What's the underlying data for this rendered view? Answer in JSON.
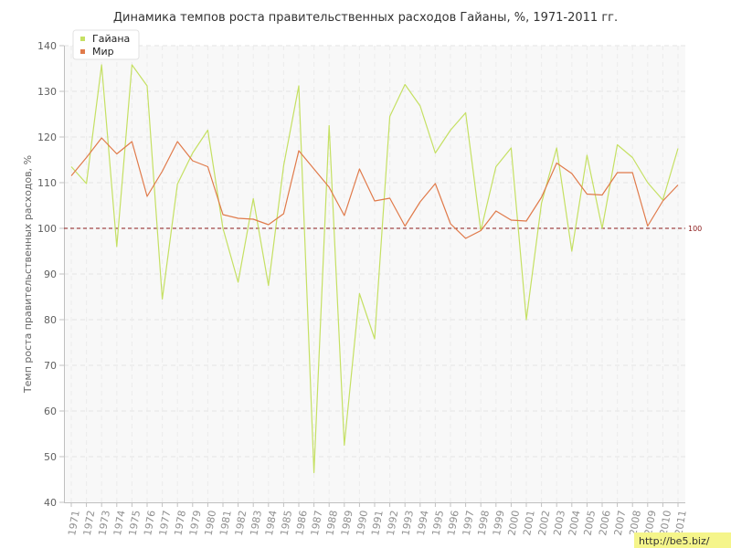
{
  "chart_data": {
    "type": "line",
    "title": "Динамика темпов роста правительственных расходов Гайаны, %, 1971-2011 гг.",
    "ylabel": "Темп роста правительственных расходов, %",
    "xlabel": "",
    "ylim": [
      40,
      140
    ],
    "yticks": [
      "40",
      "50",
      "60",
      "70",
      "80",
      "90",
      "100",
      "110",
      "120",
      "130",
      "140"
    ],
    "x": [
      "1971",
      "1972",
      "1973",
      "1974",
      "1975",
      "1976",
      "1977",
      "1978",
      "1979",
      "1980",
      "1981",
      "1982",
      "1983",
      "1984",
      "1985",
      "1986",
      "1987",
      "1988",
      "1989",
      "1990",
      "1991",
      "1992",
      "1993",
      "1994",
      "1995",
      "1996",
      "1997",
      "1998",
      "1999",
      "2000",
      "2001",
      "2002",
      "2003",
      "2004",
      "2005",
      "2006",
      "2007",
      "2008",
      "2009",
      "2010",
      "2011"
    ],
    "grid": true,
    "legend": "top-left",
    "reference_line": {
      "value": 100,
      "label": "100",
      "color": "#8b1a1a"
    },
    "series": [
      {
        "name": "Гайана",
        "color": "#c5e063",
        "values": [
          113.5,
          109.8,
          135.8,
          96.0,
          135.8,
          131.2,
          84.5,
          109.7,
          116.5,
          121.5,
          100.0,
          88.2,
          106.5,
          87.5,
          113.7,
          131.2,
          46.5,
          122.5,
          52.5,
          85.7,
          75.8,
          124.5,
          131.5,
          126.8,
          116.5,
          121.5,
          125.3,
          99.5,
          113.5,
          117.6,
          80.0,
          105.5,
          117.6,
          95.0,
          116.0,
          100.0,
          118.3,
          115.5,
          110.0,
          106.2,
          117.5
        ]
      },
      {
        "name": "Мир",
        "color": "#e07a4a",
        "values": [
          111.5,
          115.5,
          119.8,
          116.3,
          119.0,
          107.0,
          112.5,
          119.0,
          114.8,
          113.5,
          103.0,
          102.2,
          102.0,
          100.8,
          103.2,
          117.0,
          113.0,
          109.0,
          102.8,
          113.0,
          106.0,
          106.6,
          100.5,
          105.8,
          109.8,
          101.0,
          97.8,
          99.5,
          103.8,
          101.8,
          101.6,
          106.8,
          114.3,
          112.0,
          107.5,
          107.3,
          112.2,
          112.2,
          100.5,
          106.0,
          109.5
        ]
      }
    ]
  },
  "watermark": "http://be5.biz/"
}
